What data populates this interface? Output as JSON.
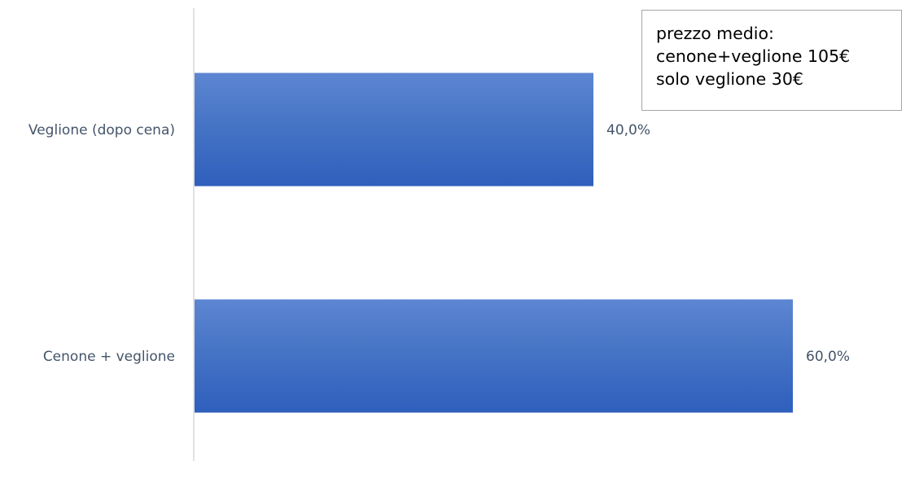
{
  "chart_data": {
    "type": "bar",
    "orientation": "horizontal",
    "categories": [
      "Veglione (dopo cena)",
      "Cenone + veglione"
    ],
    "values": [
      40.0,
      60.0
    ],
    "data_labels": [
      "40,0%",
      "60,0%"
    ],
    "unit": "%",
    "xlim": [
      0,
      60
    ],
    "grid": false,
    "title": "",
    "xlabel": "",
    "ylabel": "",
    "bar_color": "#4472c4"
  },
  "annotation": {
    "lines": [
      "prezzo medio:",
      "cenone+veglione 105€",
      "solo veglione 30€"
    ]
  }
}
